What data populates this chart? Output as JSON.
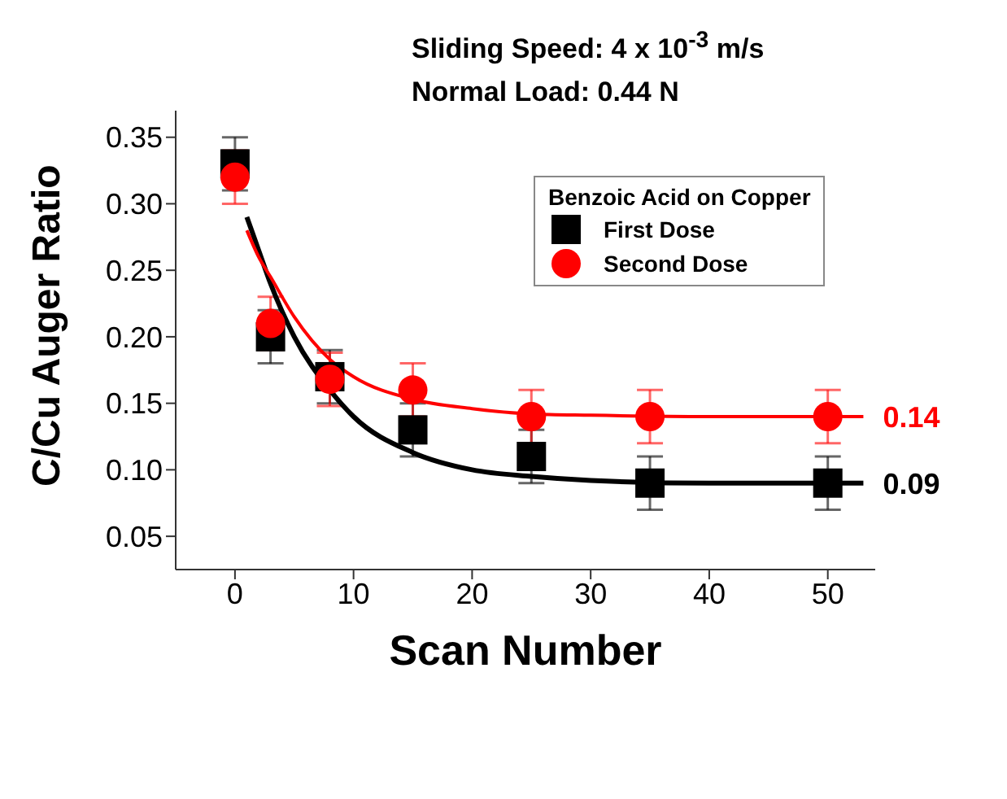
{
  "chart_data": {
    "type": "scatter",
    "title": "Sliding Speed: 4 x 10$^{-3}$ m/s",
    "subtitle": "Normal Load: 0.44 N",
    "xlabel": "Scan Number",
    "ylabel": "C/Cu Auger Ratio",
    "legend_title": "Benzoic Acid on Copper",
    "legend": "top right",
    "grid": false,
    "x": [
      0,
      3,
      8,
      15,
      25,
      35,
      50
    ],
    "series": [
      {
        "name": "First Dose",
        "color": "#000000",
        "marker": "square",
        "values": [
          0.33,
          0.2,
          0.17,
          0.13,
          0.11,
          0.09,
          0.09
        ],
        "errors": [
          0.02,
          0.02,
          0.02,
          0.02,
          0.02,
          0.02,
          0.02
        ]
      },
      {
        "name": "Second Dose",
        "color": "#ff0000",
        "marker": "circle",
        "values": [
          0.32,
          0.21,
          0.168,
          0.16,
          0.14,
          0.14,
          0.14
        ],
        "errors": [
          0.02,
          0.02,
          0.02,
          0.02,
          0.02,
          0.02,
          0.02
        ]
      },
      {
        "type": "line",
        "color": "#000000",
        "x": [
          1,
          2,
          3,
          5,
          8,
          10,
          15,
          20,
          25,
          30,
          40,
          53
        ],
        "values": [
          0.29,
          0.265,
          0.24,
          0.2,
          0.16,
          0.14,
          0.113,
          0.1,
          0.095,
          0.092,
          0.09,
          0.09
        ]
      },
      {
        "type": "line",
        "color": "#ff0000",
        "x": [
          1,
          2,
          3,
          5,
          8,
          10,
          15,
          20,
          25,
          30,
          40,
          53
        ],
        "values": [
          0.28,
          0.26,
          0.245,
          0.215,
          0.183,
          0.17,
          0.153,
          0.146,
          0.142,
          0.141,
          0.14,
          0.14
        ]
      }
    ],
    "annotations": [
      {
        "text": "0.09",
        "x": 53,
        "y": 0.09
      },
      {
        "text": "0.14",
        "x": 53,
        "y": 0.14
      }
    ],
    "xlim": [
      -5,
      54
    ],
    "xticks": [
      0,
      10,
      20,
      30,
      40,
      50
    ],
    "ylim": [
      0.025,
      0.37
    ],
    "yticks": [
      0.05,
      {
        "value": 0.1,
        "label": "0.10"
      },
      0.15,
      {
        "value": 0.2,
        "label": "0.20"
      },
      0.25,
      {
        "value": 0.3,
        "label": "0.30"
      },
      0.35
    ]
  }
}
